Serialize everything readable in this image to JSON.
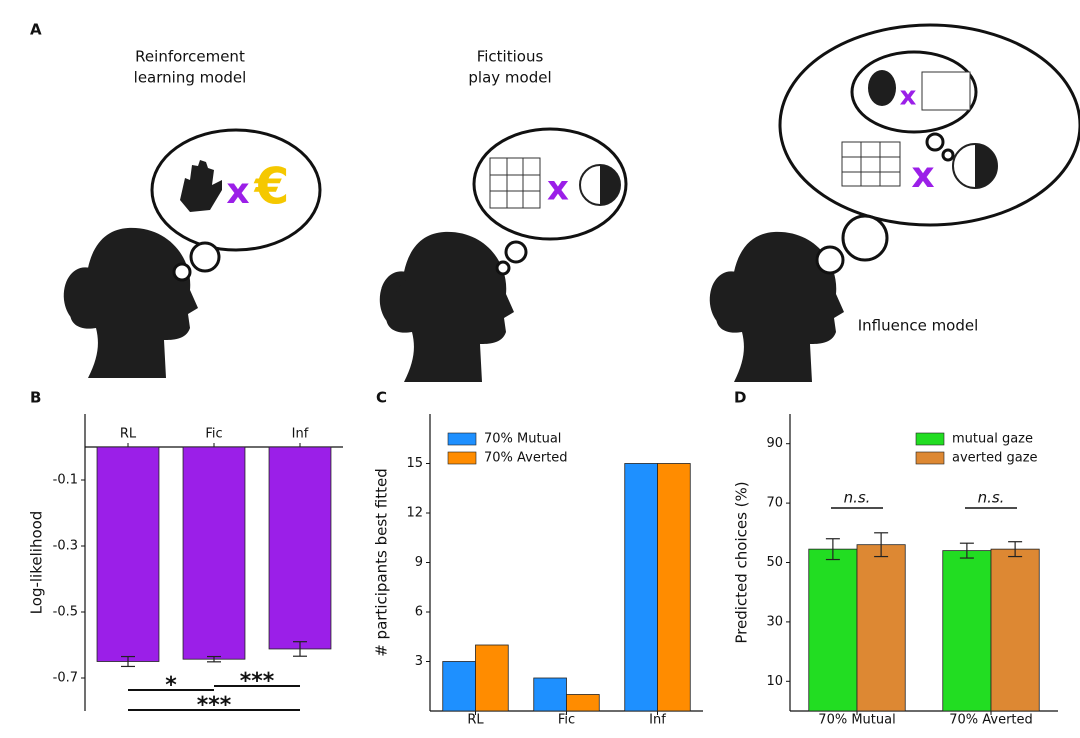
{
  "panel_a": {
    "label": "A",
    "models": [
      {
        "name": [
          "Reinforcement",
          "learning model"
        ],
        "symbols": [
          "x",
          "€"
        ]
      },
      {
        "name": [
          "Fictitious",
          "play model"
        ],
        "symbols": [
          "x"
        ]
      },
      {
        "name": [
          "Influence model"
        ],
        "symbols": [
          "x",
          "x"
        ]
      }
    ]
  },
  "chart_data": [
    {
      "panel": "B",
      "type": "bar",
      "categories": [
        "RL",
        "Fic",
        "Inf"
      ],
      "series": [
        {
          "color": "#9b1fe8",
          "values": [
            -0.65,
            -0.643,
            -0.612
          ],
          "errors": [
            0.015,
            0.008,
            0.022
          ]
        }
      ],
      "ylabel": "Log-likelihood",
      "ylim": [
        -0.8,
        0.1
      ],
      "yticks": [
        -0.1,
        -0.3,
        -0.5,
        -0.7
      ],
      "xtick_position": "top",
      "grid": false,
      "annotations": [
        {
          "text": "*",
          "between": [
            0,
            1
          ]
        },
        {
          "text": "***",
          "between": [
            1,
            2
          ]
        },
        {
          "text": "***",
          "between": [
            0,
            2
          ]
        }
      ]
    },
    {
      "panel": "C",
      "type": "bar",
      "categories": [
        "RL",
        "Fic",
        "Inf"
      ],
      "series": [
        {
          "name": "70% Mutual",
          "color": "#1e90ff",
          "values": [
            3,
            2,
            15
          ]
        },
        {
          "name": "70% Averted",
          "color": "#ff8c00",
          "values": [
            4,
            1,
            15
          ]
        }
      ],
      "ylabel": "# participants best fitted",
      "ylim": [
        0,
        18
      ],
      "yticks": [
        3,
        6,
        9,
        12,
        15
      ],
      "xtick_position": "bottom",
      "legend": "upper left",
      "grid": false
    },
    {
      "panel": "D",
      "type": "bar",
      "categories": [
        "70% Mutual",
        "70% Averted"
      ],
      "series": [
        {
          "name": "mutual gaze",
          "color": "#22dd22",
          "values": [
            54.5,
            54.0
          ],
          "errors": [
            3.5,
            2.5
          ]
        },
        {
          "name": "averted gaze",
          "color": "#dd8833",
          "values": [
            56,
            54.5
          ],
          "errors": [
            4,
            2.5
          ]
        }
      ],
      "ylabel": "Predicted choices (%)",
      "ylim": [
        0,
        100
      ],
      "yticks": [
        10,
        30,
        50,
        70,
        90
      ],
      "xtick_position": "bottom",
      "legend": "upper right",
      "grid": false,
      "annotations": [
        {
          "text": "n.s.",
          "group": 0
        },
        {
          "text": "n.s.",
          "group": 1
        }
      ]
    }
  ]
}
